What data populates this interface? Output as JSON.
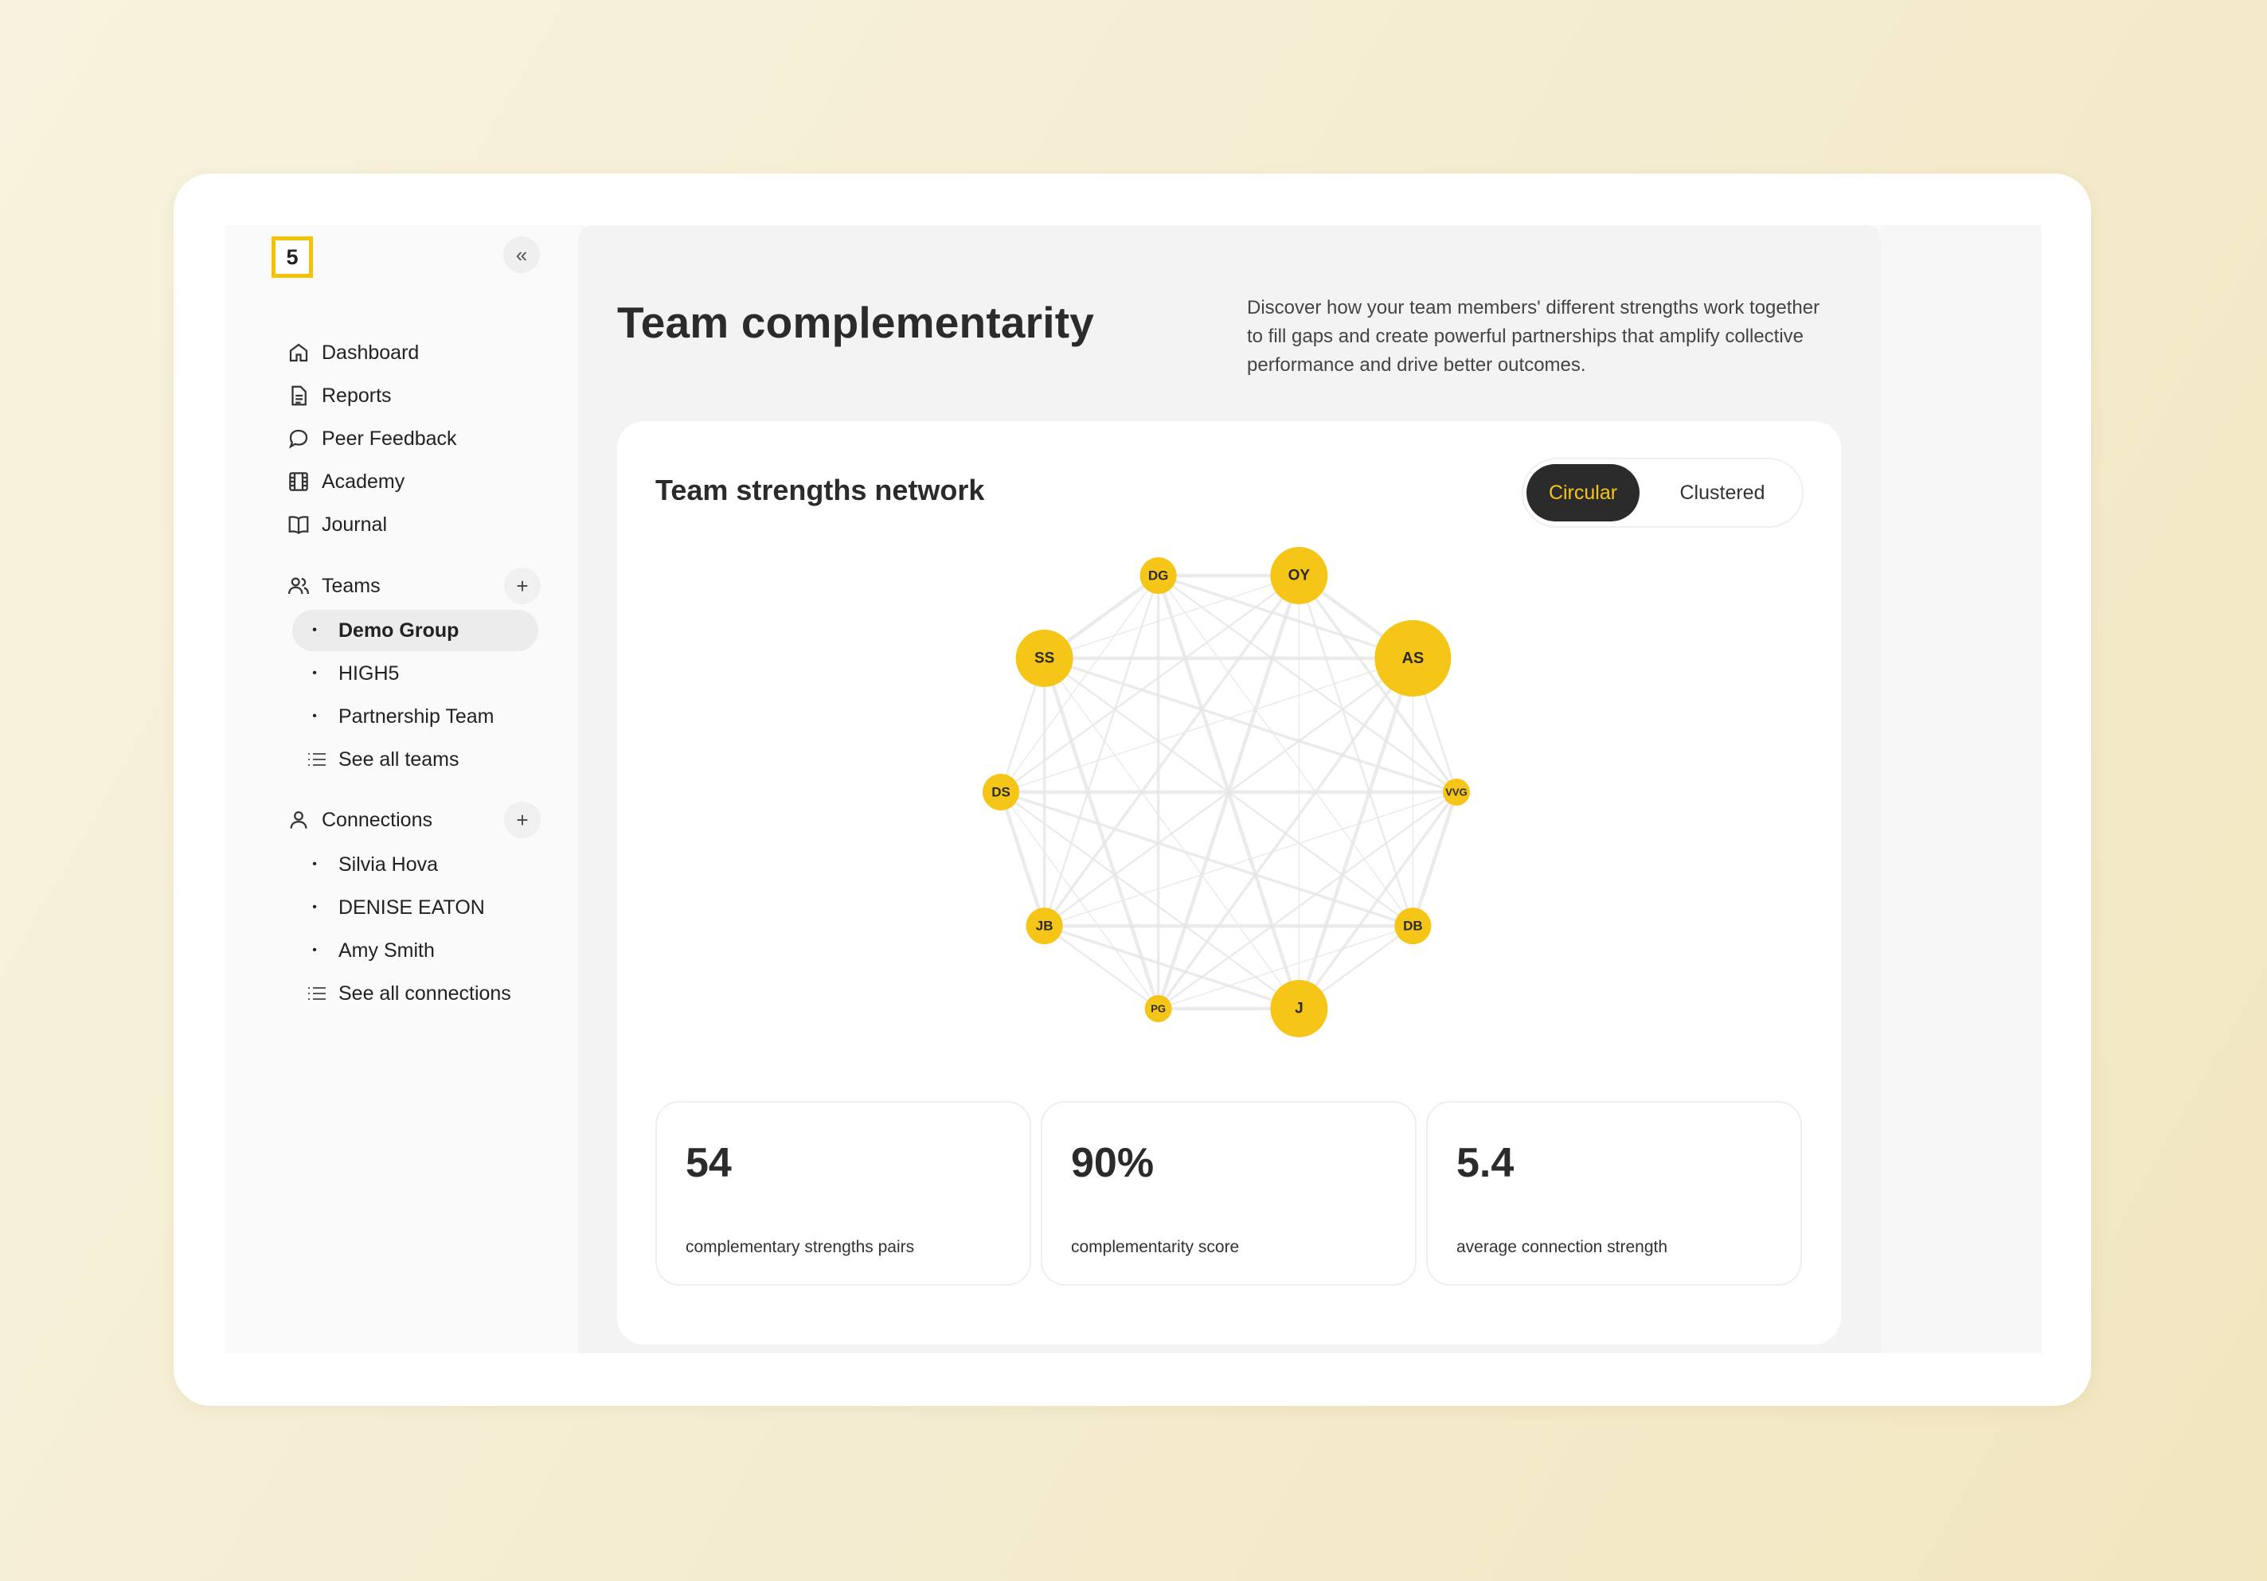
{
  "app": {
    "logo_text": "5",
    "collapse_glyph": "«"
  },
  "sidebar": {
    "nav": [
      {
        "label": "Dashboard",
        "icon": "home-icon"
      },
      {
        "label": "Reports",
        "icon": "document-icon"
      },
      {
        "label": "Peer Feedback",
        "icon": "chat-bubble-icon"
      },
      {
        "label": "Academy",
        "icon": "film-icon"
      },
      {
        "label": "Journal",
        "icon": "book-icon"
      }
    ],
    "teams": {
      "label": "Teams",
      "add_glyph": "+",
      "items": [
        "Demo Group",
        "HIGH5",
        "Partnership Team"
      ],
      "active": "Demo Group",
      "see_all": "See all teams"
    },
    "connections": {
      "label": "Connections",
      "add_glyph": "+",
      "items": [
        "Silvia Hova",
        "DENISE EATON",
        "Amy Smith"
      ],
      "see_all": "See all connections"
    },
    "bullet": "•"
  },
  "main": {
    "title": "Team complementarity",
    "description": "Discover how your team members' different strengths work together to fill gaps and create powerful partnerships that amplify collective performance and drive better outcomes.",
    "card": {
      "title": "Team strengths network",
      "toggle": {
        "options": [
          "Circular",
          "Clustered"
        ],
        "selected": "Circular"
      }
    },
    "stats": [
      {
        "value": "54",
        "label": "complementary strengths pairs"
      },
      {
        "value": "90%",
        "label": "complementarity score"
      },
      {
        "value": "5.4",
        "label": "average connection strength"
      }
    ]
  },
  "colors": {
    "accent": "#f5c518",
    "dark": "#2b2b2b",
    "edge": "#e6e6e6"
  },
  "network": {
    "layout": "circular",
    "nodes": [
      {
        "id": "OY",
        "size": "large"
      },
      {
        "id": "AS",
        "size": "xlarge"
      },
      {
        "id": "VVG",
        "size": "xsmall"
      },
      {
        "id": "DB",
        "size": "small"
      },
      {
        "id": "J",
        "size": "large"
      },
      {
        "id": "PG",
        "size": "xsmall"
      },
      {
        "id": "JB",
        "size": "small"
      },
      {
        "id": "DS",
        "size": "small"
      },
      {
        "id": "SS",
        "size": "large"
      },
      {
        "id": "DG",
        "size": "small"
      }
    ]
  }
}
